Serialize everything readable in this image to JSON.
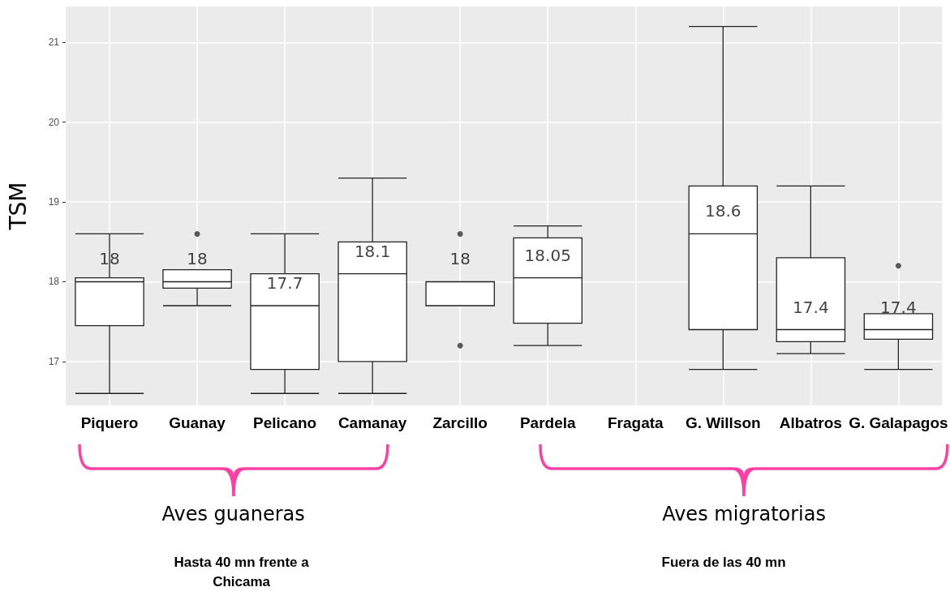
{
  "chart_data": {
    "type": "box",
    "ylabel": "TSM",
    "categories": [
      "Piquero",
      "Guanay",
      "Pelicano",
      "Camanay",
      "Zarcillo",
      "Pardela",
      "Fragata",
      "G. Willson",
      "Albatros",
      "G. Galapagos"
    ],
    "boxes": [
      {
        "low": 16.6,
        "q1": 17.45,
        "median": 18.0,
        "q3": 18.05,
        "high": 18.6
      },
      {
        "low": 17.7,
        "q1": 17.92,
        "median": 18.0,
        "q3": 18.15,
        "high": 18.15,
        "outliers": [
          18.6
        ]
      },
      {
        "low": 16.6,
        "q1": 16.9,
        "median": 17.7,
        "q3": 18.1,
        "high": 18.6
      },
      {
        "low": 16.6,
        "q1": 17.0,
        "median": 18.1,
        "q3": 18.5,
        "high": 19.3
      },
      {
        "low": 17.7,
        "q1": 17.7,
        "median": 18.0,
        "q3": 18.0,
        "high": 18.0,
        "outliers": [
          18.6,
          17.2
        ]
      },
      {
        "low": 17.2,
        "q1": 17.48,
        "median": 18.05,
        "q3": 18.55,
        "high": 18.7
      },
      null,
      {
        "low": 16.9,
        "q1": 17.4,
        "median": 18.6,
        "q3": 19.2,
        "high": 21.2
      },
      {
        "low": 17.1,
        "q1": 17.25,
        "median": 17.4,
        "q3": 18.3,
        "high": 19.2
      },
      {
        "low": 16.9,
        "q1": 17.28,
        "median": 17.4,
        "q3": 17.6,
        "high": 17.6,
        "outliers": [
          18.2
        ]
      }
    ],
    "value_labels": [
      "18",
      "18",
      "17.7",
      "18.1",
      "18",
      "18.05",
      null,
      "18.6",
      "17.4",
      "17.4"
    ],
    "ylim": [
      16.45,
      21.45
    ],
    "yticks": [
      17,
      18,
      19,
      20,
      21
    ],
    "grid": true,
    "annotations": [
      "Aves guaneras",
      "Aves migratorias",
      "Hasta 40 mn frente a Chicama",
      "Fuera de las 40 mn"
    ]
  }
}
